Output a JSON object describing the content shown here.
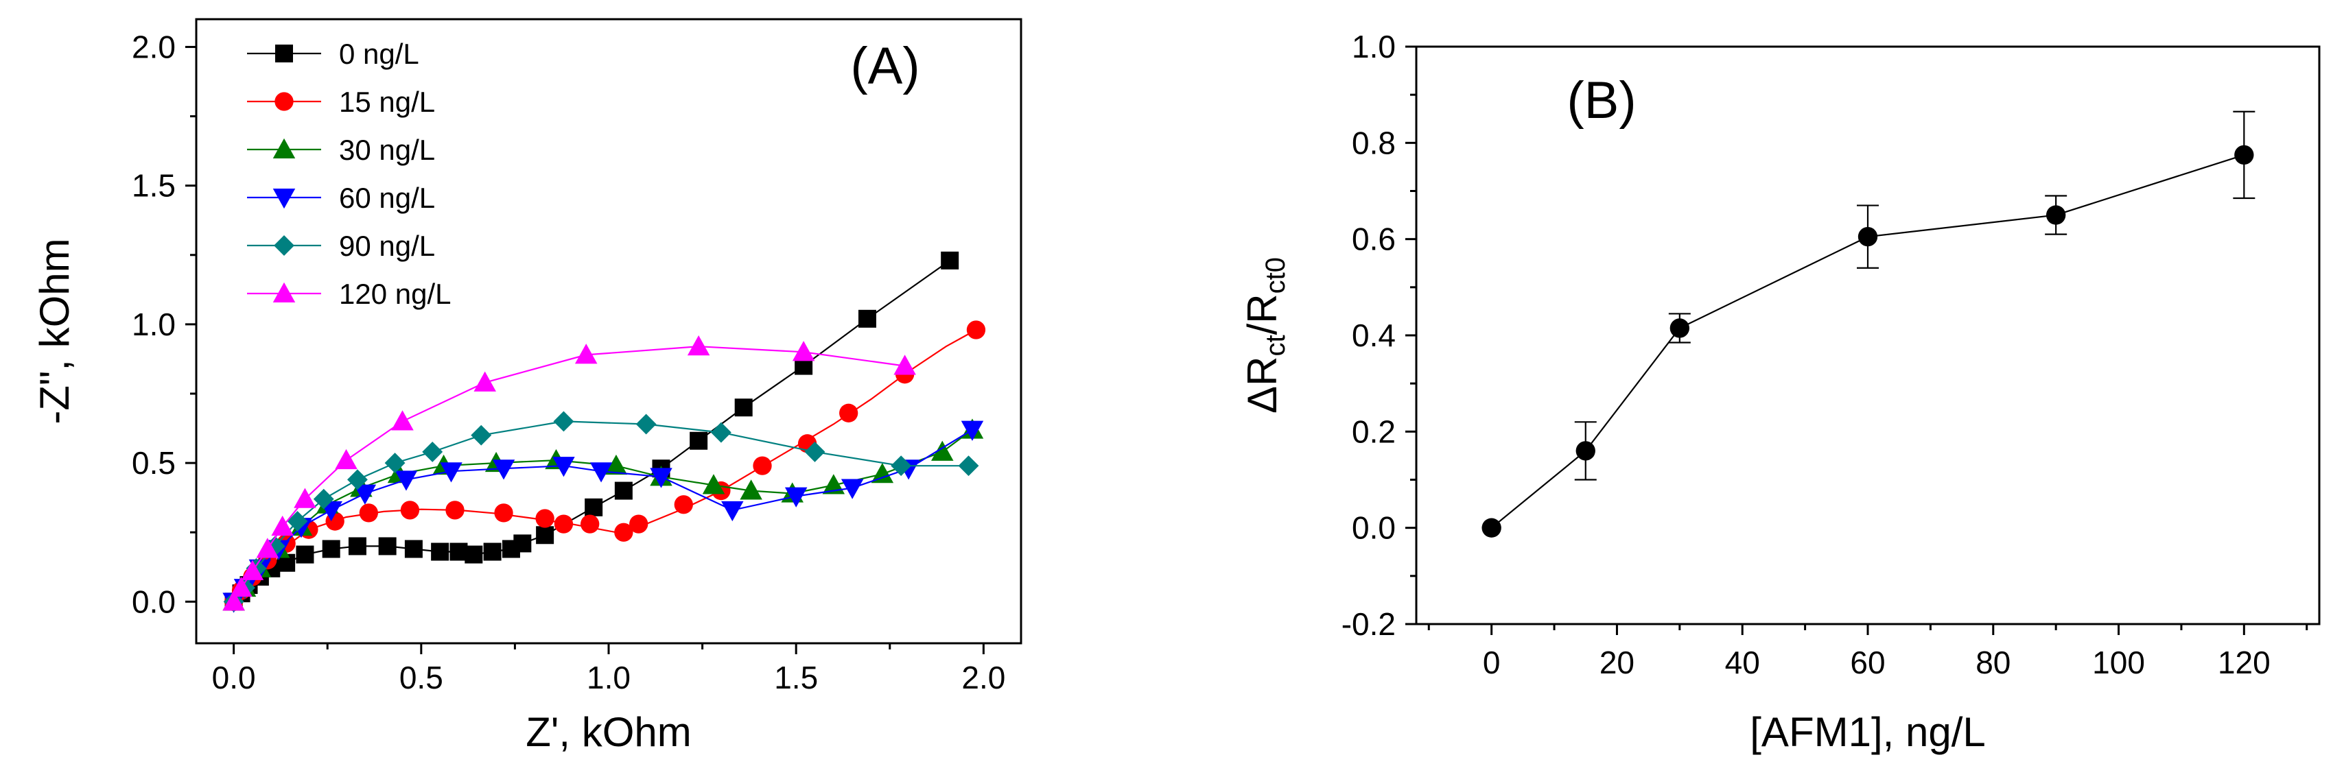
{
  "chart_data": [
    {
      "type": "scatter",
      "panel_label": "(A)",
      "xlabel": "Z', kOhm",
      "ylabel": "-Z\", kOhm",
      "xlim": [
        -0.1,
        2.1
      ],
      "ylim": [
        -0.15,
        2.1
      ],
      "xticks": [
        0.0,
        0.5,
        1.0,
        1.5,
        2.0
      ],
      "xtick_labels": [
        "0.0",
        "0.5",
        "1.0",
        "1.5",
        "2.0"
      ],
      "yticks": [
        0.0,
        0.5,
        1.0,
        1.5,
        2.0
      ],
      "ytick_labels": [
        "0.0",
        "0.5",
        "1.0",
        "1.5",
        "2.0"
      ],
      "legend_position": "top-left",
      "series": [
        {
          "name": "0 ng/L",
          "color": "#000000",
          "marker": "square",
          "x": [
            0.0,
            0.02,
            0.04,
            0.07,
            0.1,
            0.14,
            0.19,
            0.26,
            0.33,
            0.41,
            0.48,
            0.55,
            0.6,
            0.64,
            0.69,
            0.74,
            0.77,
            0.83,
            0.96,
            1.04,
            1.14,
            1.24,
            1.36,
            1.52,
            1.69,
            1.91
          ],
          "y": [
            0.0,
            0.03,
            0.06,
            0.09,
            0.12,
            0.14,
            0.17,
            0.19,
            0.2,
            0.2,
            0.19,
            0.18,
            0.18,
            0.17,
            0.18,
            0.19,
            0.21,
            0.24,
            0.34,
            0.4,
            0.48,
            0.58,
            0.7,
            0.85,
            1.02,
            1.23
          ]
        },
        {
          "name": "15 ng/L",
          "color": "#ff0000",
          "marker": "circle",
          "x": [
            0.0,
            0.02,
            0.05,
            0.09,
            0.14,
            0.2,
            0.27,
            0.36,
            0.47,
            0.59,
            0.72,
            0.83,
            0.88,
            0.95,
            1.04,
            1.08,
            1.2,
            1.3,
            1.41,
            1.53,
            1.64,
            1.79,
            1.98
          ],
          "y": [
            0.0,
            0.04,
            0.09,
            0.15,
            0.21,
            0.26,
            0.29,
            0.32,
            0.33,
            0.33,
            0.32,
            0.3,
            0.28,
            0.28,
            0.25,
            0.28,
            0.35,
            0.4,
            0.49,
            0.57,
            0.68,
            0.82,
            0.98
          ],
          "curve_x": [
            0.0,
            0.1,
            0.2,
            0.3,
            0.4,
            0.5,
            0.6,
            0.7,
            0.8,
            0.9,
            1.0,
            1.04,
            1.1,
            1.2,
            1.3,
            1.4,
            1.5,
            1.6,
            1.7,
            1.8,
            1.9,
            1.98
          ],
          "curve_y": [
            0.0,
            0.16,
            0.26,
            0.305,
            0.325,
            0.333,
            0.33,
            0.318,
            0.3,
            0.28,
            0.255,
            0.245,
            0.28,
            0.335,
            0.4,
            0.48,
            0.56,
            0.64,
            0.73,
            0.83,
            0.92,
            0.98
          ]
        },
        {
          "name": "30 ng/L",
          "color": "#007a00",
          "marker": "triangle-up",
          "x": [
            0.0,
            0.03,
            0.07,
            0.12,
            0.18,
            0.25,
            0.34,
            0.44,
            0.56,
            0.7,
            0.86,
            1.02,
            1.14,
            1.28,
            1.38,
            1.49,
            1.6,
            1.73,
            1.89,
            1.97
          ],
          "y": [
            0.0,
            0.05,
            0.12,
            0.19,
            0.27,
            0.35,
            0.41,
            0.46,
            0.49,
            0.5,
            0.51,
            0.49,
            0.45,
            0.42,
            0.4,
            0.39,
            0.42,
            0.46,
            0.54,
            0.62
          ]
        },
        {
          "name": "60 ng/L",
          "color": "#0000ff",
          "marker": "triangle-down",
          "x": [
            0.0,
            0.03,
            0.07,
            0.12,
            0.18,
            0.26,
            0.35,
            0.46,
            0.58,
            0.72,
            0.88,
            0.98,
            1.14,
            1.33,
            1.5,
            1.65,
            1.8,
            1.97
          ],
          "y": [
            0.0,
            0.05,
            0.12,
            0.19,
            0.27,
            0.33,
            0.39,
            0.44,
            0.47,
            0.48,
            0.49,
            0.47,
            0.45,
            0.33,
            0.38,
            0.41,
            0.48,
            0.62
          ]
        },
        {
          "name": "90 ng/L",
          "color": "#008080",
          "marker": "diamond",
          "x": [
            0.0,
            0.03,
            0.06,
            0.11,
            0.17,
            0.24,
            0.33,
            0.43,
            0.53,
            0.66,
            0.88,
            1.1,
            1.3,
            1.55,
            1.78,
            1.96
          ],
          "y": [
            0.0,
            0.05,
            0.12,
            0.2,
            0.29,
            0.37,
            0.44,
            0.5,
            0.54,
            0.6,
            0.65,
            0.64,
            0.61,
            0.54,
            0.49,
            0.49
          ]
        },
        {
          "name": "120 ng/L",
          "color": "#ff00ff",
          "marker": "triangle-up",
          "x": [
            0.0,
            0.02,
            0.05,
            0.09,
            0.13,
            0.19,
            0.3,
            0.45,
            0.67,
            0.94,
            1.24,
            1.52,
            1.79
          ],
          "y": [
            0.0,
            0.05,
            0.11,
            0.19,
            0.27,
            0.37,
            0.51,
            0.65,
            0.79,
            0.89,
            0.92,
            0.9,
            0.85
          ]
        }
      ],
      "legend_entries": [
        "0 ng/L",
        "15 ng/L",
        "30 ng/L",
        "60 ng/L",
        "90 ng/L",
        "120 ng/L"
      ]
    },
    {
      "type": "line",
      "panel_label": "(B)",
      "xlabel": "[AFM1], ng/L",
      "ylabel_parts": [
        "ΔR",
        "ct",
        "/R",
        "ct0"
      ],
      "xlim": [
        -12,
        132
      ],
      "ylim": [
        -0.2,
        1.0
      ],
      "xticks": [
        0,
        20,
        40,
        60,
        80,
        100,
        120
      ],
      "xtick_labels": [
        "0",
        "20",
        "40",
        "60",
        "80",
        "100",
        "120"
      ],
      "yticks": [
        -0.2,
        0.0,
        0.2,
        0.4,
        0.6,
        0.8,
        1.0
      ],
      "ytick_labels": [
        "-0.2",
        "0.0",
        "0.2",
        "0.4",
        "0.6",
        "0.8",
        "1.0"
      ],
      "series": [
        {
          "name": "ΔRct/Rct0",
          "color": "#000000",
          "marker": "circle",
          "x": [
            0,
            15,
            30,
            60,
            90,
            120
          ],
          "y": [
            0.0,
            0.16,
            0.415,
            0.605,
            0.65,
            0.775
          ],
          "err": [
            0.0,
            0.06,
            0.03,
            0.065,
            0.04,
            0.09
          ]
        }
      ]
    }
  ]
}
